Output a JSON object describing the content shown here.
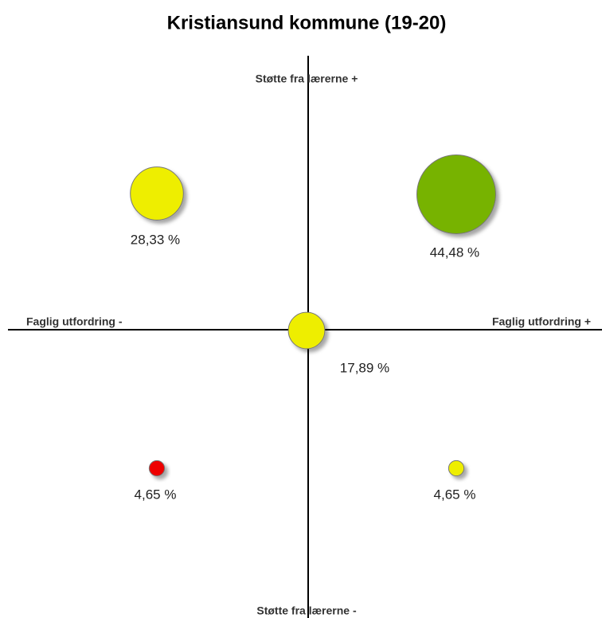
{
  "chart_data": {
    "type": "bubble",
    "title": "Kristiansund kommune (19-20)",
    "y_axis_top": "Støtte fra lærerne +",
    "y_axis_bottom": "Støtte fra lærerne -",
    "x_axis_left": "Faglig utfordring -",
    "x_axis_right": "Faglig utfordring +",
    "values": [
      28.33,
      44.48,
      17.89,
      4.65,
      4.65
    ],
    "value_labels": [
      "28,33 %",
      "44,48 %",
      "17,89 %",
      "4,65 %",
      "4,65 %"
    ],
    "colors": [
      "#eeee00",
      "#77b300",
      "#eeee00",
      "#ee0000",
      "#eeee00"
    ]
  }
}
